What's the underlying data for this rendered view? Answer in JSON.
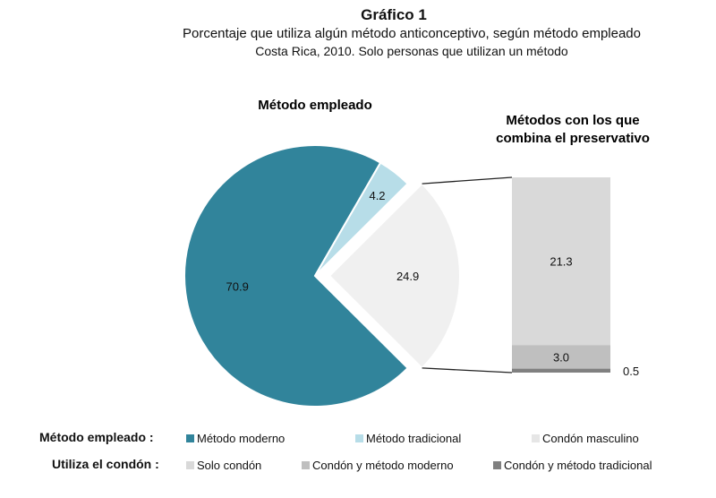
{
  "header": {
    "title": "Gráfico 1",
    "subtitle": "Porcentaje que utiliza algún método anticonceptivo, según método empleado",
    "subtitle2": "Costa Rica, 2010. Solo personas que utilizan un método"
  },
  "chart_data": [
    {
      "type": "pie",
      "title": "Método empleado",
      "categories": [
        "Método moderno",
        "Método tradicional",
        "Condón masculino"
      ],
      "values": [
        70.9,
        4.2,
        24.9
      ],
      "labels": [
        "70.9",
        "4.2",
        "24.9"
      ],
      "colors": [
        "#31849b",
        "#b7dde8",
        "#f0f0f0"
      ],
      "exploded": "Condón masculino"
    },
    {
      "type": "bar",
      "stacked": true,
      "title": "Métodos con los que combina el preservativo",
      "categories": [
        "Solo condón",
        "Condón y método moderno",
        "Condón y método tradicional"
      ],
      "values": [
        21.3,
        3.0,
        0.5
      ],
      "labels": [
        "21.3",
        "3.0",
        "0.5"
      ],
      "colors": [
        "#d9d9d9",
        "#bfbfbf",
        "#808080"
      ]
    }
  ],
  "legend": {
    "row1": {
      "title": "Método empleado :",
      "items": [
        {
          "label": "Método moderno",
          "color": "#31849b"
        },
        {
          "label": "Método tradicional",
          "color": "#b7dde8"
        },
        {
          "label": "Condón masculino",
          "color": "#e6e6e6"
        }
      ]
    },
    "row2": {
      "title": "Utiliza el condón :",
      "items": [
        {
          "label": "Solo condón",
          "color": "#d9d9d9"
        },
        {
          "label": "Condón y método moderno",
          "color": "#bfbfbf"
        },
        {
          "label": "Condón y método tradicional",
          "color": "#808080"
        }
      ]
    }
  }
}
